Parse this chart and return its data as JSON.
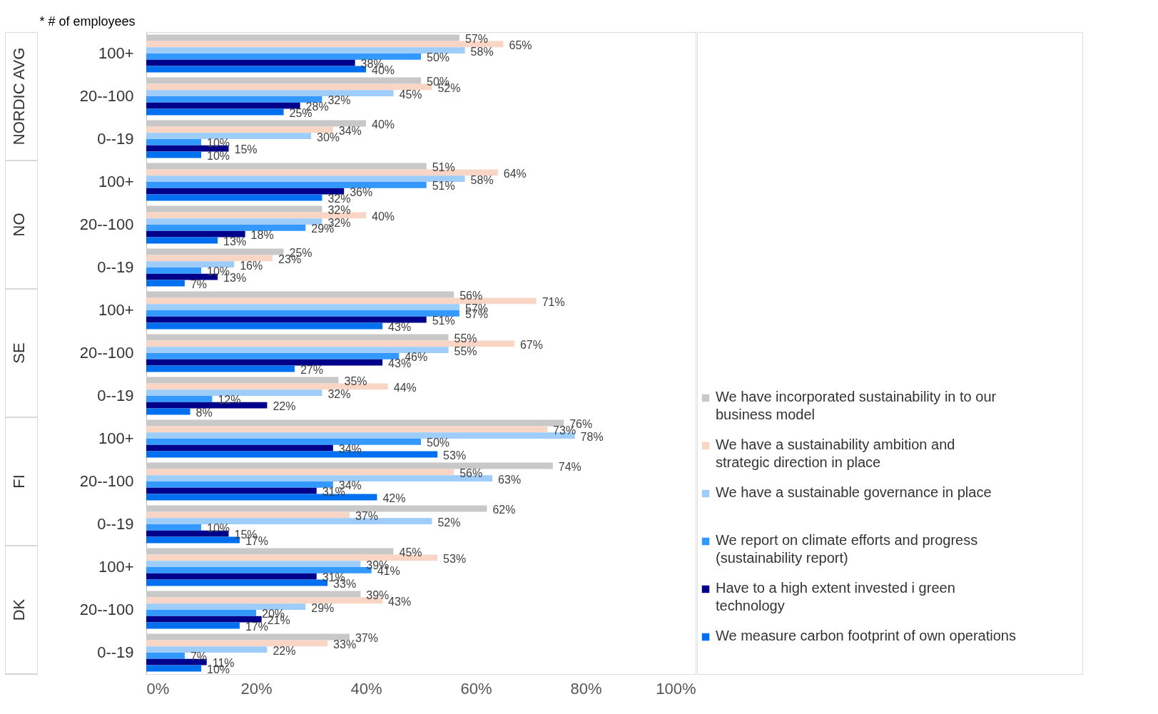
{
  "chart_data": {
    "type": "bar",
    "orientation": "horizontal",
    "ylabel": "* # of employees",
    "categories": [
      "100+",
      "20--100",
      "0--19",
      "100+",
      "20--100",
      "0--19",
      "100+",
      "20--100",
      "0--19",
      "100+",
      "20--100",
      "0--19",
      "100+",
      "20--100",
      "0--19"
    ],
    "annotations": [
      "NORDIC AVG",
      "NO",
      "SE",
      "FI",
      "DK"
    ],
    "xlim": [
      0,
      100
    ],
    "xticks": [
      {
        "value": 0,
        "label": "0%"
      },
      {
        "value": 20,
        "label": "20%"
      },
      {
        "value": 40,
        "label": "40%"
      },
      {
        "value": 60,
        "label": "60%"
      },
      {
        "value": 80,
        "label": "80%"
      },
      {
        "value": 100,
        "label": "100%"
      }
    ],
    "grid": false,
    "legend": "right",
    "series": [
      {
        "name": "We have incorporated sustainability in to our business model",
        "color": "#c8c8c8",
        "values": [
          57,
          50,
          40,
          51,
          32,
          25,
          56,
          55,
          35,
          76,
          74,
          62,
          45,
          39,
          37
        ],
        "value_labels": [
          "57%",
          "50%",
          "40%",
          "51%",
          "32%",
          "25%",
          "56%",
          "55%",
          "35%",
          "76%",
          "74%",
          "62%",
          "45%",
          "39%",
          "37%"
        ]
      },
      {
        "name": "We have a sustainability ambition and strategic direction in place",
        "color": "#f8d5c5",
        "values": [
          65,
          52,
          34,
          64,
          40,
          23,
          71,
          67,
          44,
          73,
          56,
          37,
          53,
          43,
          33
        ],
        "value_labels": [
          "65%",
          "52%",
          "34%",
          "64%",
          "40%",
          "23%",
          "71%",
          "67%",
          "44%",
          "73%",
          "56%",
          "37%",
          "53%",
          "43%",
          "33%"
        ]
      },
      {
        "name": "We have a sustainable governance in place",
        "color": "#9dcdf8",
        "values": [
          58,
          45,
          30,
          58,
          32,
          16,
          57,
          55,
          32,
          78,
          63,
          52,
          39,
          29,
          22
        ],
        "value_labels": [
          "58%",
          "45%",
          "30%",
          "58%",
          "32%",
          "16%",
          "57%",
          "55%",
          "32%",
          "78%",
          "63%",
          "52%",
          "39%",
          "29%",
          "22%"
        ]
      },
      {
        "name": "We report on climate efforts and progress (sustainability report)",
        "color": "#3399ff",
        "values": [
          50,
          32,
          10,
          51,
          29,
          10,
          57,
          46,
          12,
          50,
          34,
          10,
          41,
          20,
          7
        ],
        "value_labels": [
          "50%",
          "32%",
          "10%",
          "51%",
          "29%",
          "10%",
          "57%",
          "46%",
          "12%",
          "50%",
          "34%",
          "10%",
          "41%",
          "20%",
          "7%"
        ]
      },
      {
        "name": "Have to a high extent invested i green technology",
        "color": "#00008b",
        "values": [
          38,
          28,
          15,
          36,
          18,
          13,
          51,
          43,
          22,
          34,
          31,
          15,
          31,
          21,
          11
        ],
        "value_labels": [
          "38%",
          "28%",
          "15%",
          "36%",
          "18%",
          "13%",
          "51%",
          "43%",
          "22%",
          "34%",
          "31%",
          "15%",
          "31%",
          "21%",
          "11%"
        ]
      },
      {
        "name": "We measure carbon footprint of own operations",
        "color": "#0070f0",
        "values": [
          40,
          25,
          10,
          32,
          13,
          7,
          43,
          27,
          8,
          53,
          42,
          17,
          33,
          17,
          10
        ],
        "value_labels": [
          "40%",
          "25%",
          "10%",
          "32%",
          "13%",
          "7%",
          "43%",
          "27%",
          "8%",
          "53%",
          "42%",
          "17%",
          "33%",
          "17%",
          "10%"
        ]
      }
    ]
  }
}
